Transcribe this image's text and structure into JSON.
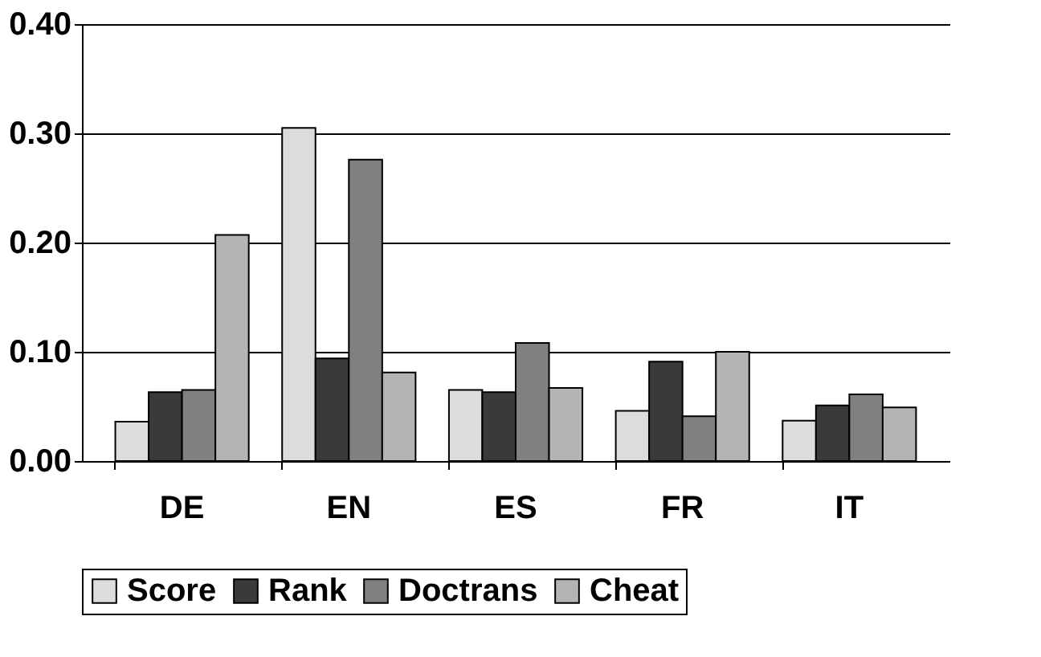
{
  "chart_data": {
    "type": "bar",
    "categories": [
      "DE",
      "EN",
      "ES",
      "FR",
      "IT"
    ],
    "series": [
      {
        "name": "Score",
        "color": "#dcdcdc",
        "values": [
          0.036,
          0.305,
          0.065,
          0.046,
          0.037
        ]
      },
      {
        "name": "Rank",
        "color": "#3a3a3a",
        "values": [
          0.063,
          0.094,
          0.063,
          0.091,
          0.051
        ]
      },
      {
        "name": "Doctrans",
        "color": "#808080",
        "values": [
          0.065,
          0.276,
          0.108,
          0.041,
          0.061
        ]
      },
      {
        "name": "Cheat",
        "color": "#b4b4b4",
        "values": [
          0.207,
          0.081,
          0.067,
          0.1,
          0.049
        ]
      }
    ],
    "ylim": [
      0,
      0.4
    ],
    "yticks": [
      {
        "value": 0,
        "label": "0.00"
      },
      {
        "value": 0.1,
        "label": "0.10"
      },
      {
        "value": 0.2,
        "label": "0.20"
      },
      {
        "value": 0.3,
        "label": "0.30"
      },
      {
        "value": 0.4,
        "label": "0.40"
      }
    ],
    "grid": "y",
    "legend": "bottom"
  }
}
